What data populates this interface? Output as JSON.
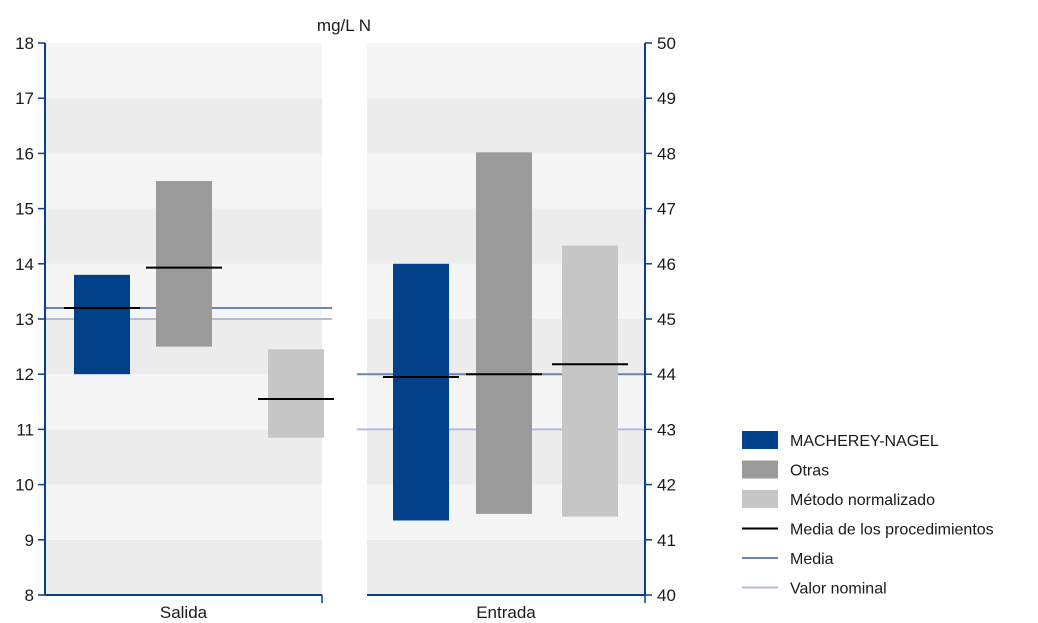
{
  "chart_data": {
    "type": "bar",
    "unit_label": "mg/L N",
    "categories": [
      "Salida",
      "Entrada"
    ],
    "left_axis": {
      "min": 8,
      "max": 18,
      "ticks": [
        8,
        9,
        10,
        11,
        12,
        13,
        14,
        15,
        16,
        17,
        18
      ],
      "applies_to": "Salida"
    },
    "right_axis": {
      "min": 40,
      "max": 50,
      "ticks": [
        40,
        41,
        42,
        43,
        44,
        45,
        46,
        47,
        48,
        49,
        50
      ],
      "applies_to": "Entrada"
    },
    "grid": "alternating horizontal bands",
    "colors": {
      "MACHEREY-NAGEL": "#004189",
      "Otras": "#9b9b9b",
      "Método normalizado": "#c6c6c6",
      "Media de los procedimientos": "#000000",
      "Media": "#6b82b4",
      "Valor nominal": "#b4bcdc",
      "axis": "#0b3f87",
      "band_light": "#f5f5f5",
      "band_dark": "#ececec"
    },
    "series": [
      {
        "name": "MACHEREY-NAGEL",
        "ranges": [
          {
            "category": "Salida",
            "low": 12.0,
            "high": 13.8,
            "mean": 13.2
          },
          {
            "category": "Entrada",
            "low": 41.35,
            "high": 46.0,
            "mean": 43.95
          }
        ]
      },
      {
        "name": "Otras",
        "ranges": [
          {
            "category": "Salida",
            "low": 12.5,
            "high": 15.5,
            "mean": 13.93
          },
          {
            "category": "Entrada",
            "low": 41.47,
            "high": 48.02,
            "mean": 44.0
          }
        ]
      },
      {
        "name": "Método normalizado",
        "ranges": [
          {
            "category": "Salida",
            "low": 10.85,
            "high": 12.45,
            "mean": 11.55
          },
          {
            "category": "Entrada",
            "low": 41.42,
            "high": 46.33,
            "mean": 44.18
          }
        ]
      }
    ],
    "reference_lines": [
      {
        "name": "Media",
        "values": {
          "Salida": 13.2,
          "Entrada": 44.0
        }
      },
      {
        "name": "Valor nominal",
        "values": {
          "Salida": 13.0,
          "Entrada": 43.0
        }
      }
    ],
    "legend": {
      "position": "right",
      "entries": [
        {
          "label": "MACHEREY-NAGEL",
          "kind": "box"
        },
        {
          "label": "Otras",
          "kind": "box"
        },
        {
          "label": "Método normalizado",
          "kind": "box"
        },
        {
          "label": "Media de los procedimientos",
          "kind": "line"
        },
        {
          "label": "Media",
          "kind": "line"
        },
        {
          "label": "Valor nominal",
          "kind": "line"
        }
      ]
    }
  }
}
